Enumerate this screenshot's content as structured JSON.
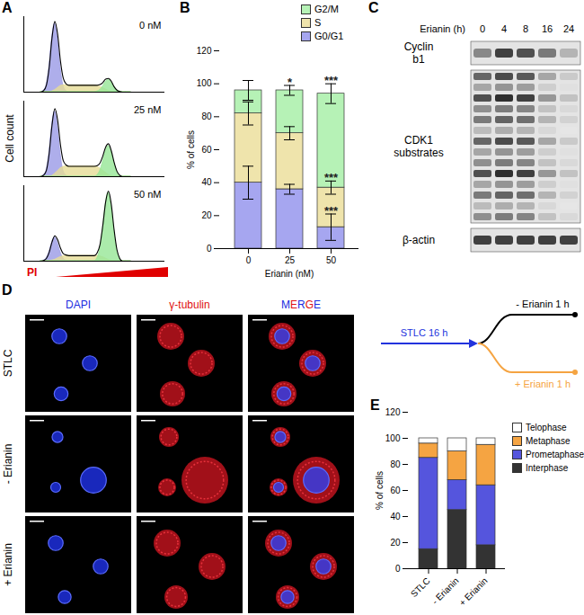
{
  "panel_labels": [
    "A",
    "B",
    "C",
    "D",
    "E"
  ],
  "chart_data": [
    {
      "type": "area",
      "annotation": "0 nM",
      "tick_labels": false,
      "x": [
        30,
        35,
        40,
        45,
        50,
        55,
        60,
        65,
        70,
        75,
        80,
        85,
        90,
        95,
        100,
        105,
        110,
        115,
        120,
        125,
        130,
        135,
        140,
        145,
        150,
        155,
        160,
        165,
        170,
        175,
        180,
        185,
        190
      ],
      "xlim": [
        0,
        250
      ],
      "ylim": [
        0,
        110
      ],
      "series": [
        {
          "name": "G0/G1",
          "color": "#9a9ae6",
          "values": [
            0,
            2,
            10,
            36,
            78,
            100,
            78,
            36,
            10,
            2,
            0,
            0,
            0,
            0,
            0,
            0,
            0,
            0,
            0,
            0,
            0,
            0,
            0,
            0,
            0,
            0,
            0,
            0,
            0,
            0,
            0,
            0,
            0
          ]
        },
        {
          "name": "S",
          "color": "#e6dc96",
          "values": [
            0,
            0,
            0,
            0,
            1,
            3,
            6,
            9,
            10,
            10,
            10,
            10,
            10,
            10,
            10,
            10,
            10,
            10,
            10,
            10,
            9,
            8,
            6,
            4,
            2,
            1,
            0,
            0,
            0,
            0,
            0,
            0,
            0
          ]
        },
        {
          "name": "G2/M",
          "color": "#96e696",
          "values": [
            0,
            0,
            0,
            0,
            0,
            0,
            0,
            0,
            0,
            0,
            0,
            0,
            0,
            0,
            0,
            0,
            0,
            0,
            0,
            0,
            1,
            3,
            8,
            15,
            18,
            15,
            8,
            3,
            1,
            0,
            0,
            0,
            0
          ]
        },
        {
          "type": "line",
          "color": "#000000",
          "values": [
            0,
            2,
            10,
            36,
            79,
            103,
            84,
            45,
            20,
            12,
            10,
            10,
            10,
            10,
            10,
            10,
            10,
            10,
            10,
            10,
            10,
            11,
            14,
            19,
            20,
            16,
            8,
            3,
            1,
            0,
            0,
            0,
            0
          ]
        }
      ]
    },
    {
      "type": "area",
      "annotation": "25 nM",
      "ylabel": "Cell count",
      "tick_labels": false,
      "x": [
        30,
        35,
        40,
        45,
        50,
        55,
        60,
        65,
        70,
        75,
        80,
        85,
        90,
        95,
        100,
        105,
        110,
        115,
        120,
        125,
        130,
        135,
        140,
        145,
        150,
        155,
        160,
        165,
        170,
        175,
        180,
        185,
        190
      ],
      "xlim": [
        0,
        250
      ],
      "ylim": [
        0,
        110
      ],
      "series": [
        {
          "name": "G0/G1",
          "color": "#9a9ae6",
          "values": [
            0,
            2,
            9,
            34,
            74,
            95,
            74,
            34,
            9,
            2,
            0,
            0,
            0,
            0,
            0,
            0,
            0,
            0,
            0,
            0,
            0,
            0,
            0,
            0,
            0,
            0,
            0,
            0,
            0,
            0,
            0,
            0,
            0
          ]
        },
        {
          "name": "S",
          "color": "#e6dc96",
          "values": [
            0,
            0,
            0,
            0,
            1,
            4,
            8,
            12,
            14,
            15,
            15,
            15,
            15,
            15,
            15,
            15,
            15,
            15,
            15,
            15,
            14,
            12,
            9,
            6,
            3,
            1,
            0,
            0,
            0,
            0,
            0,
            0,
            0
          ]
        },
        {
          "name": "G2/M",
          "color": "#96e696",
          "values": [
            0,
            0,
            0,
            0,
            0,
            0,
            0,
            0,
            0,
            0,
            0,
            0,
            0,
            0,
            0,
            0,
            0,
            0,
            0,
            0,
            2,
            8,
            21,
            37,
            45,
            37,
            21,
            8,
            2,
            0,
            0,
            0,
            0
          ]
        },
        {
          "type": "line",
          "color": "#000000",
          "values": [
            0,
            2,
            9,
            34,
            75,
            99,
            82,
            46,
            23,
            17,
            15,
            15,
            15,
            15,
            15,
            15,
            15,
            15,
            15,
            15,
            16,
            20,
            30,
            43,
            48,
            38,
            21,
            8,
            2,
            0,
            0,
            0,
            0
          ]
        }
      ]
    },
    {
      "type": "area",
      "annotation": "50 nM",
      "xlabel": "PI",
      "tick_labels": false,
      "x": [
        30,
        35,
        40,
        45,
        50,
        55,
        60,
        65,
        70,
        75,
        80,
        85,
        90,
        95,
        100,
        105,
        110,
        115,
        120,
        125,
        130,
        135,
        140,
        145,
        150,
        155,
        160,
        165,
        170,
        175,
        180,
        185,
        190
      ],
      "xlim": [
        0,
        250
      ],
      "ylim": [
        0,
        110
      ],
      "series": [
        {
          "name": "G0/G1",
          "color": "#9a9ae6",
          "values": [
            0,
            1,
            4,
            13,
            27,
            35,
            27,
            13,
            4,
            1,
            0,
            0,
            0,
            0,
            0,
            0,
            0,
            0,
            0,
            0,
            0,
            0,
            0,
            0,
            0,
            0,
            0,
            0,
            0,
            0,
            0,
            0,
            0
          ]
        },
        {
          "name": "S",
          "color": "#e6dc96",
          "values": [
            0,
            0,
            0,
            0,
            1,
            2,
            4,
            6,
            7,
            8,
            8,
            8,
            8,
            8,
            8,
            8,
            8,
            8,
            8,
            8,
            8,
            7,
            6,
            4,
            2,
            1,
            0,
            0,
            0,
            0,
            0,
            0,
            0
          ]
        },
        {
          "name": "G2/M",
          "color": "#96e696",
          "values": [
            0,
            0,
            0,
            0,
            0,
            0,
            0,
            0,
            0,
            0,
            0,
            0,
            0,
            0,
            0,
            0,
            0,
            0,
            0,
            0,
            4,
            17,
            46,
            82,
            100,
            82,
            46,
            17,
            4,
            0,
            0,
            0,
            0
          ]
        },
        {
          "type": "line",
          "color": "#000000",
          "values": [
            0,
            1,
            4,
            13,
            28,
            37,
            31,
            19,
            11,
            9,
            8,
            8,
            8,
            8,
            8,
            8,
            8,
            8,
            8,
            8,
            12,
            24,
            52,
            86,
            102,
            83,
            46,
            17,
            4,
            0,
            0,
            0,
            0
          ]
        }
      ]
    },
    {
      "type": "bar",
      "stacked": true,
      "legend": "top-right",
      "categories": [
        "0",
        "25",
        "50"
      ],
      "xlabel": "Erianin (nM)",
      "ylabel": "% of cells",
      "ylim": [
        0,
        120
      ],
      "yticks": [
        0,
        20,
        40,
        60,
        80,
        100,
        120
      ],
      "series": [
        {
          "name": "G0/G1",
          "color": "#a6a6f0",
          "values": [
            40,
            36,
            13
          ],
          "errors": [
            10,
            3,
            8
          ]
        },
        {
          "name": "S",
          "color": "#efe4ac",
          "values": [
            42,
            34,
            24
          ],
          "errors": [
            7,
            4,
            4
          ]
        },
        {
          "name": "G2/M",
          "color": "#b6f2b6",
          "values": [
            14,
            26,
            57
          ],
          "errors": [
            6,
            3,
            6
          ]
        }
      ],
      "annotations": [
        {
          "category": "25",
          "series": "G2/M",
          "text": "*"
        },
        {
          "category": "50",
          "series": "G2/M",
          "text": "***"
        },
        {
          "category": "50",
          "series": "S",
          "text": "***"
        },
        {
          "category": "50",
          "series": "G0/G1",
          "text": "***"
        }
      ]
    },
    {
      "type": "bar",
      "stacked": true,
      "legend": "right",
      "categories": [
        "STLC",
        "- Erianin",
        "+ Erianin"
      ],
      "ylabel": "% of cells",
      "ylim": [
        0,
        120
      ],
      "yticks": [
        0,
        20,
        40,
        60,
        80,
        100,
        120
      ],
      "series": [
        {
          "name": "Interphase",
          "color": "#333333",
          "values": [
            15,
            45,
            18
          ]
        },
        {
          "name": "Prometaphase",
          "color": "#5555dd",
          "values": [
            70,
            23,
            46
          ]
        },
        {
          "name": "Metaphase",
          "color": "#f5a442",
          "values": [
            11,
            22,
            31
          ]
        },
        {
          "name": "Telophase",
          "color": "#ffffff",
          "values": [
            4,
            10,
            5
          ]
        }
      ]
    }
  ],
  "blot": {
    "header": "Erianin (h)",
    "lanes": [
      "0",
      "4",
      "8",
      "16",
      "24"
    ],
    "rows": [
      {
        "label": "Cyclin b1",
        "intensity": [
          0.55,
          0.8,
          0.75,
          0.6,
          0.4
        ]
      },
      {
        "label": "CDK1 substrates",
        "intensity": [
          0.75,
          0.85,
          0.8,
          0.5,
          0.35
        ]
      },
      {
        "label": "β-actin",
        "intensity": [
          0.8,
          0.8,
          0.8,
          0.8,
          0.8
        ]
      }
    ]
  },
  "microscopy": {
    "columns": [
      "DAPI",
      "γ-tubulin",
      "MERGE"
    ],
    "rows": [
      "STLC",
      "- Erianin",
      "+ Erianin"
    ]
  },
  "scheme": {
    "start": "STLC 16 h",
    "branches": [
      "- Erianin 1 h",
      "+ Erianin 1 h"
    ]
  }
}
